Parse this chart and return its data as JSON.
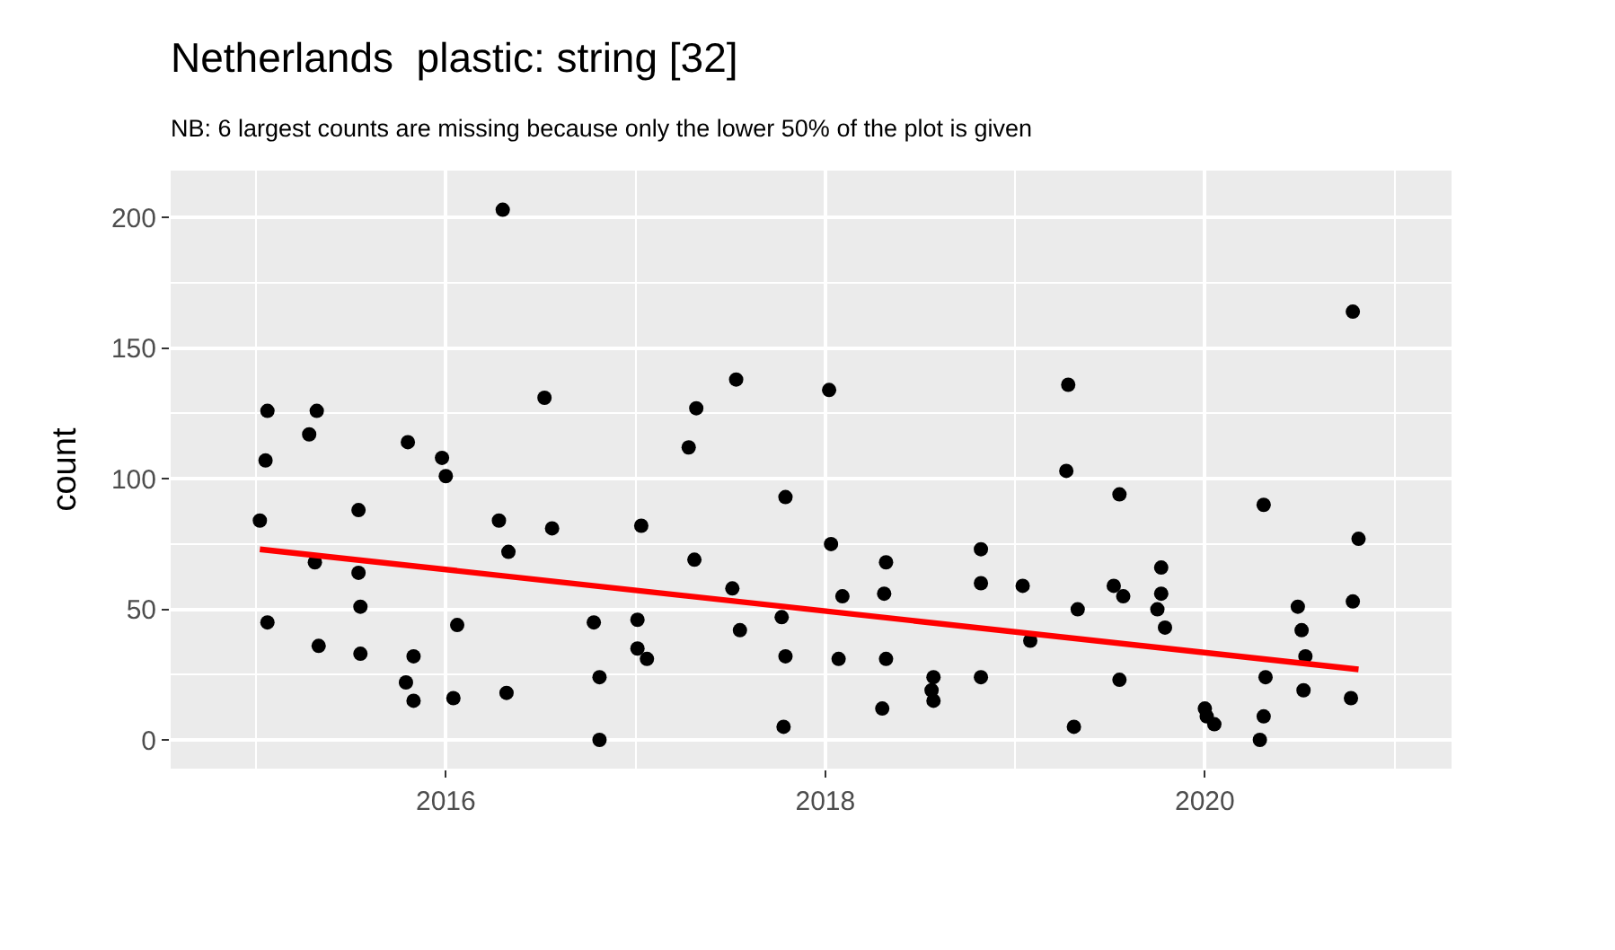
{
  "chart_data": {
    "type": "scatter",
    "title": "Netherlands  plastic: string [32]",
    "subtitle": "NB: 6 largest counts are missing because only the lower 50% of the plot is given",
    "ylabel": "count",
    "series": [
      {
        "color": "#000000",
        "marker": "circle",
        "x": [
          2015.06,
          2015.05,
          2015.02,
          2015.06,
          2015.32,
          2015.28,
          2015.31,
          2015.33,
          2015.54,
          2015.54,
          2015.55,
          2015.55,
          2015.8,
          2015.83,
          2015.79,
          2015.83,
          2015.98,
          2016.0,
          2016.06,
          2016.04,
          2016.3,
          2016.28,
          2016.33,
          2016.32,
          2016.52,
          2016.56,
          2016.78,
          2016.81,
          2016.81,
          2017.03,
          2017.01,
          2017.01,
          2017.06,
          2017.28,
          2017.32,
          2017.31,
          2017.53,
          2017.51,
          2017.55,
          2017.79,
          2017.77,
          2017.79,
          2017.78,
          2018.02,
          2018.03,
          2018.09,
          2018.07,
          2018.32,
          2018.31,
          2018.32,
          2018.3,
          2018.57,
          2018.56,
          2018.57,
          2018.82,
          2018.82,
          2018.82,
          2019.04,
          2019.08,
          2019.28,
          2019.27,
          2019.33,
          2019.31,
          2019.55,
          2019.52,
          2019.57,
          2019.55,
          2019.77,
          2019.77,
          2019.75,
          2019.79,
          2020.0,
          2020.01,
          2020.05,
          2020.31,
          2020.32,
          2020.31,
          2020.29,
          2020.49,
          2020.51,
          2020.53,
          2020.52,
          2020.78,
          2020.81,
          2020.78,
          2020.77
        ],
        "values": [
          126,
          107,
          84,
          45,
          126,
          117,
          68,
          36,
          88,
          64,
          51,
          33,
          114,
          32,
          22,
          15,
          108,
          101,
          44,
          16,
          203,
          84,
          72,
          18,
          131,
          81,
          45,
          24,
          0,
          82,
          46,
          35,
          31,
          112,
          127,
          69,
          138,
          58,
          42,
          93,
          47,
          32,
          5,
          134,
          75,
          55,
          31,
          68,
          56,
          31,
          12,
          24,
          19,
          15,
          73,
          60,
          24,
          59,
          38,
          136,
          103,
          50,
          5,
          94,
          59,
          55,
          23,
          66,
          56,
          50,
          43,
          12,
          9,
          6,
          90,
          24,
          9,
          0,
          51,
          42,
          32,
          19,
          164,
          77,
          53,
          16
        ]
      },
      {
        "type": "line",
        "color": "#ff0000",
        "x": [
          2015.02,
          2020.81
        ],
        "values": [
          73,
          27
        ]
      }
    ],
    "xlim": [
      2014.55,
      2021.3
    ],
    "xticks": [
      2016,
      2018,
      2020
    ],
    "ylim": [
      -11,
      218
    ],
    "yticks": [
      0,
      50,
      100,
      150,
      200
    ],
    "grid": true,
    "line_style": "solid"
  }
}
